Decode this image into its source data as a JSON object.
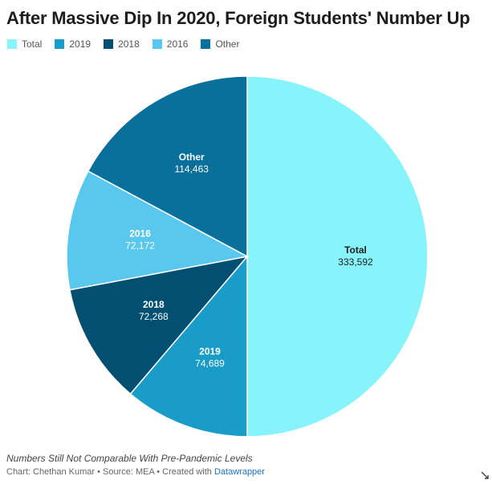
{
  "title": "After Massive Dip In 2020, Foreign Students' Number Up",
  "chart_data": {
    "type": "pie",
    "title": "After Massive Dip In 2020, Foreign Students' Number Up",
    "legend_position": "top-left",
    "slices": [
      {
        "label": "Total",
        "value": 333592,
        "display": "333,592",
        "color": "#87f3fb"
      },
      {
        "label": "2019",
        "value": 74689,
        "display": "74,689",
        "color": "#1a9cc9"
      },
      {
        "label": "2018",
        "value": 72268,
        "display": "72,268",
        "color": "#034f72"
      },
      {
        "label": "2016",
        "value": 72172,
        "display": "72,172",
        "color": "#5ac8ee"
      },
      {
        "label": "Other",
        "value": 114463,
        "display": "114,463",
        "color": "#08709a"
      }
    ]
  },
  "footer": {
    "note": "Numbers Still Not Comparable With Pre-Pandemic Levels",
    "credits_prefix": "Chart: Chethan Kumar • Source: MEA • Created with ",
    "credits_link": "Datawrapper"
  }
}
